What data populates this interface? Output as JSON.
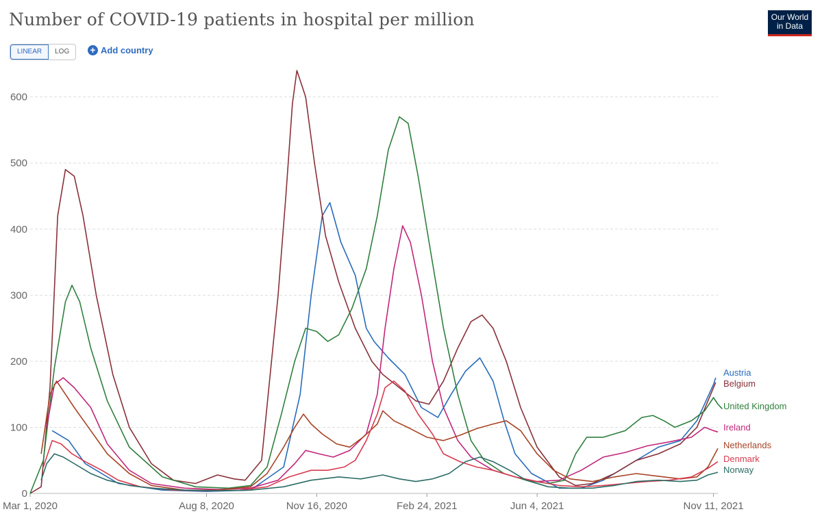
{
  "header": {
    "title": "Number of COVID-19 patients in hospital per million",
    "logo_line1": "Our World",
    "logo_line2": "in Data",
    "scale_linear": "LINEAR",
    "scale_log": "LOG",
    "add_country": "Add country"
  },
  "chart_data": {
    "type": "line",
    "title": "Number of COVID-19 patients in hospital per million",
    "xlabel": "",
    "ylabel": "",
    "ylim": [
      0,
      640
    ],
    "y_ticks": [
      0,
      100,
      200,
      300,
      400,
      500,
      600
    ],
    "x_ticks": [
      {
        "label": "Mar 1, 2020",
        "t": 0
      },
      {
        "label": "Aug 8, 2020",
        "t": 160
      },
      {
        "label": "Nov 16, 2020",
        "t": 260
      },
      {
        "label": "Feb 24, 2021",
        "t": 360
      },
      {
        "label": "Jun 4, 2021",
        "t": 460
      },
      {
        "label": "Nov 11, 2021",
        "t": 620
      }
    ],
    "grid": true,
    "legend": "right, labels at line ends",
    "series": [
      {
        "name": "Austria",
        "color": "#286bbb",
        "points": [
          [
            20,
            95
          ],
          [
            35,
            80
          ],
          [
            50,
            45
          ],
          [
            80,
            15
          ],
          [
            120,
            5
          ],
          [
            160,
            3
          ],
          [
            200,
            5
          ],
          [
            230,
            40
          ],
          [
            245,
            150
          ],
          [
            255,
            300
          ],
          [
            265,
            420
          ],
          [
            272,
            440
          ],
          [
            282,
            380
          ],
          [
            295,
            330
          ],
          [
            305,
            250
          ],
          [
            312,
            230
          ],
          [
            325,
            205
          ],
          [
            340,
            180
          ],
          [
            355,
            130
          ],
          [
            370,
            115
          ],
          [
            382,
            150
          ],
          [
            395,
            185
          ],
          [
            408,
            205
          ],
          [
            420,
            170
          ],
          [
            430,
            110
          ],
          [
            440,
            60
          ],
          [
            455,
            30
          ],
          [
            480,
            8
          ],
          [
            500,
            8
          ],
          [
            520,
            20
          ],
          [
            545,
            45
          ],
          [
            570,
            70
          ],
          [
            590,
            80
          ],
          [
            605,
            110
          ],
          [
            620,
            165
          ],
          [
            622,
            175
          ]
        ]
      },
      {
        "name": "Belgium",
        "color": "#883039",
        "points": [
          [
            0,
            0
          ],
          [
            10,
            10
          ],
          [
            18,
            160
          ],
          [
            25,
            420
          ],
          [
            32,
            490
          ],
          [
            40,
            480
          ],
          [
            48,
            420
          ],
          [
            60,
            300
          ],
          [
            75,
            180
          ],
          [
            90,
            100
          ],
          [
            110,
            45
          ],
          [
            130,
            20
          ],
          [
            150,
            15
          ],
          [
            170,
            28
          ],
          [
            185,
            22
          ],
          [
            195,
            20
          ],
          [
            210,
            50
          ],
          [
            225,
            300
          ],
          [
            232,
            450
          ],
          [
            238,
            590
          ],
          [
            242,
            640
          ],
          [
            250,
            600
          ],
          [
            258,
            500
          ],
          [
            268,
            390
          ],
          [
            280,
            320
          ],
          [
            295,
            250
          ],
          [
            310,
            200
          ],
          [
            320,
            180
          ],
          [
            335,
            160
          ],
          [
            350,
            140
          ],
          [
            362,
            135
          ],
          [
            375,
            170
          ],
          [
            388,
            220
          ],
          [
            400,
            260
          ],
          [
            410,
            270
          ],
          [
            420,
            250
          ],
          [
            432,
            200
          ],
          [
            445,
            130
          ],
          [
            460,
            70
          ],
          [
            480,
            25
          ],
          [
            495,
            12
          ],
          [
            510,
            15
          ],
          [
            530,
            30
          ],
          [
            550,
            50
          ],
          [
            570,
            60
          ],
          [
            590,
            75
          ],
          [
            605,
            100
          ],
          [
            615,
            140
          ],
          [
            622,
            168
          ]
        ]
      },
      {
        "name": "United Kingdom",
        "color": "#2f7f3e",
        "points": [
          [
            0,
            0
          ],
          [
            12,
            50
          ],
          [
            22,
            190
          ],
          [
            32,
            290
          ],
          [
            38,
            315
          ],
          [
            45,
            290
          ],
          [
            55,
            220
          ],
          [
            70,
            140
          ],
          [
            90,
            70
          ],
          [
            120,
            25
          ],
          [
            150,
            10
          ],
          [
            180,
            8
          ],
          [
            200,
            12
          ],
          [
            215,
            40
          ],
          [
            228,
            120
          ],
          [
            240,
            200
          ],
          [
            250,
            250
          ],
          [
            260,
            245
          ],
          [
            270,
            230
          ],
          [
            280,
            240
          ],
          [
            292,
            280
          ],
          [
            305,
            340
          ],
          [
            315,
            420
          ],
          [
            325,
            520
          ],
          [
            335,
            570
          ],
          [
            343,
            560
          ],
          [
            352,
            480
          ],
          [
            362,
            380
          ],
          [
            375,
            250
          ],
          [
            388,
            150
          ],
          [
            400,
            80
          ],
          [
            412,
            50
          ],
          [
            430,
            30
          ],
          [
            450,
            20
          ],
          [
            470,
            15
          ],
          [
            485,
            20
          ],
          [
            495,
            60
          ],
          [
            505,
            85
          ],
          [
            520,
            85
          ],
          [
            540,
            95
          ],
          [
            555,
            115
          ],
          [
            565,
            118
          ],
          [
            575,
            110
          ],
          [
            585,
            100
          ],
          [
            600,
            110
          ],
          [
            612,
            125
          ],
          [
            620,
            145
          ],
          [
            624,
            135
          ],
          [
            628,
            128
          ]
        ]
      },
      {
        "name": "Ireland",
        "color": "#c1267a",
        "points": [
          [
            15,
            100
          ],
          [
            22,
            165
          ],
          [
            30,
            175
          ],
          [
            40,
            160
          ],
          [
            55,
            130
          ],
          [
            70,
            75
          ],
          [
            90,
            35
          ],
          [
            110,
            15
          ],
          [
            140,
            8
          ],
          [
            170,
            6
          ],
          [
            200,
            8
          ],
          [
            225,
            20
          ],
          [
            240,
            45
          ],
          [
            250,
            65
          ],
          [
            262,
            60
          ],
          [
            275,
            55
          ],
          [
            290,
            65
          ],
          [
            305,
            90
          ],
          [
            315,
            150
          ],
          [
            322,
            250
          ],
          [
            330,
            340
          ],
          [
            338,
            405
          ],
          [
            345,
            380
          ],
          [
            355,
            300
          ],
          [
            365,
            200
          ],
          [
            375,
            130
          ],
          [
            388,
            80
          ],
          [
            400,
            55
          ],
          [
            420,
            35
          ],
          [
            440,
            25
          ],
          [
            460,
            18
          ],
          [
            480,
            20
          ],
          [
            500,
            35
          ],
          [
            520,
            55
          ],
          [
            540,
            62
          ],
          [
            560,
            72
          ],
          [
            580,
            78
          ],
          [
            600,
            85
          ],
          [
            612,
            100
          ],
          [
            620,
            95
          ],
          [
            624,
            93
          ]
        ]
      },
      {
        "name": "Netherlands",
        "color": "#a74325",
        "points": [
          [
            10,
            60
          ],
          [
            18,
            150
          ],
          [
            24,
            170
          ],
          [
            30,
            155
          ],
          [
            40,
            130
          ],
          [
            55,
            95
          ],
          [
            70,
            60
          ],
          [
            90,
            30
          ],
          [
            110,
            12
          ],
          [
            140,
            5
          ],
          [
            170,
            5
          ],
          [
            200,
            10
          ],
          [
            215,
            30
          ],
          [
            230,
            70
          ],
          [
            240,
            100
          ],
          [
            248,
            120
          ],
          [
            255,
            105
          ],
          [
            265,
            90
          ],
          [
            278,
            75
          ],
          [
            290,
            70
          ],
          [
            302,
            85
          ],
          [
            315,
            105
          ],
          [
            320,
            125
          ],
          [
            330,
            110
          ],
          [
            345,
            98
          ],
          [
            360,
            85
          ],
          [
            375,
            80
          ],
          [
            390,
            88
          ],
          [
            405,
            98
          ],
          [
            420,
            105
          ],
          [
            432,
            110
          ],
          [
            445,
            95
          ],
          [
            460,
            60
          ],
          [
            475,
            35
          ],
          [
            490,
            22
          ],
          [
            510,
            18
          ],
          [
            530,
            25
          ],
          [
            550,
            30
          ],
          [
            570,
            26
          ],
          [
            590,
            22
          ],
          [
            605,
            25
          ],
          [
            615,
            40
          ],
          [
            624,
            68
          ]
        ]
      },
      {
        "name": "Denmark",
        "color": "#d73c50",
        "points": [
          [
            12,
            40
          ],
          [
            20,
            80
          ],
          [
            28,
            75
          ],
          [
            38,
            60
          ],
          [
            50,
            48
          ],
          [
            65,
            35
          ],
          [
            80,
            20
          ],
          [
            100,
            10
          ],
          [
            130,
            5
          ],
          [
            160,
            4
          ],
          [
            190,
            5
          ],
          [
            215,
            10
          ],
          [
            235,
            25
          ],
          [
            255,
            35
          ],
          [
            270,
            35
          ],
          [
            285,
            40
          ],
          [
            295,
            50
          ],
          [
            305,
            80
          ],
          [
            315,
            120
          ],
          [
            322,
            160
          ],
          [
            330,
            170
          ],
          [
            340,
            155
          ],
          [
            352,
            120
          ],
          [
            365,
            90
          ],
          [
            375,
            60
          ],
          [
            390,
            48
          ],
          [
            405,
            40
          ],
          [
            420,
            35
          ],
          [
            440,
            25
          ],
          [
            460,
            18
          ],
          [
            480,
            12
          ],
          [
            500,
            10
          ],
          [
            520,
            12
          ],
          [
            540,
            15
          ],
          [
            560,
            18
          ],
          [
            580,
            20
          ],
          [
            600,
            25
          ],
          [
            615,
            38
          ],
          [
            624,
            48
          ]
        ]
      },
      {
        "name": "Norway",
        "color": "#2a6b63",
        "points": [
          [
            10,
            20
          ],
          [
            15,
            45
          ],
          [
            22,
            60
          ],
          [
            30,
            55
          ],
          [
            40,
            45
          ],
          [
            55,
            30
          ],
          [
            70,
            20
          ],
          [
            90,
            12
          ],
          [
            110,
            8
          ],
          [
            140,
            5
          ],
          [
            170,
            4
          ],
          [
            200,
            5
          ],
          [
            230,
            10
          ],
          [
            255,
            20
          ],
          [
            280,
            25
          ],
          [
            300,
            22
          ],
          [
            320,
            28
          ],
          [
            335,
            22
          ],
          [
            350,
            18
          ],
          [
            365,
            22
          ],
          [
            380,
            30
          ],
          [
            395,
            48
          ],
          [
            408,
            55
          ],
          [
            420,
            48
          ],
          [
            435,
            35
          ],
          [
            450,
            20
          ],
          [
            470,
            10
          ],
          [
            490,
            8
          ],
          [
            510,
            8
          ],
          [
            530,
            12
          ],
          [
            550,
            18
          ],
          [
            570,
            20
          ],
          [
            590,
            18
          ],
          [
            605,
            20
          ],
          [
            615,
            28
          ],
          [
            624,
            32
          ]
        ]
      }
    ]
  }
}
